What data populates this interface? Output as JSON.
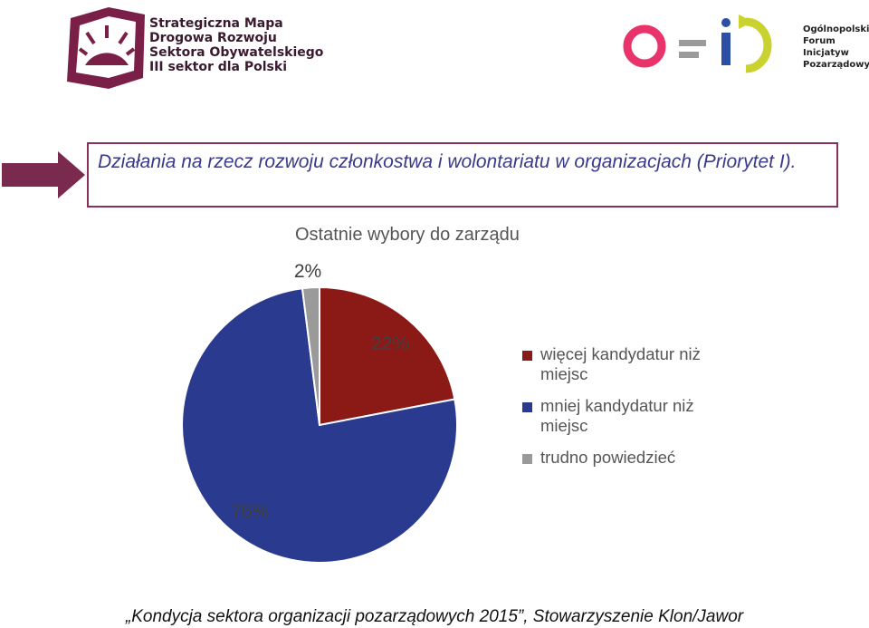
{
  "header": {
    "logo_left_lines": [
      "Strategiczna Mapa",
      "Drogowa Rozwoju",
      "Sektora Obywatelskiego",
      "III sektor dla Polski"
    ],
    "logo_right_lines": [
      "Ogólnopolskie",
      "Forum",
      "Inicjatyw",
      "Pozarządowych"
    ],
    "logo_right_mark": "o=i"
  },
  "banner": {
    "text": "Działania na rzecz rozwoju członkostwa i wolontariatu w organizacjach (Priorytet I)."
  },
  "chart_data": {
    "type": "pie",
    "title": "Ostatnie wybory do zarządu",
    "slices": [
      {
        "label": "więcej kandydatur niż miejsc",
        "value": 22,
        "display": "22%",
        "color": "#8b1a17"
      },
      {
        "label": "mniej kandydatur niż miejsc",
        "value": 76,
        "display": "76%",
        "color": "#2a3a8e"
      },
      {
        "label": "trudno powiedzieć",
        "value": 2,
        "display": "2%",
        "color": "#9a9a9a"
      }
    ],
    "legend_position": "right"
  },
  "footer": {
    "source": "„Kondycja sektora organizacji pozarządowych 2015”, Stowarzyszenie Klon/Jawor"
  },
  "colors": {
    "banner_border": "#8a2f55",
    "banner_text": "#3a3a8a",
    "arrow": "#7a2a4e"
  }
}
